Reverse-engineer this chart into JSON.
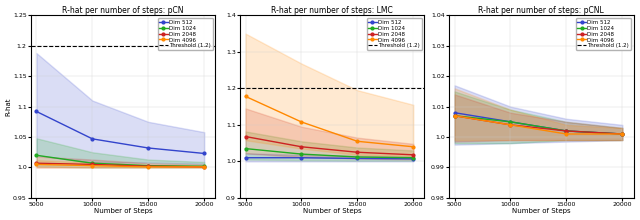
{
  "x": [
    5000,
    10000,
    15000,
    20000
  ],
  "plots": [
    {
      "title": "R-hat per number of steps: pCN",
      "ylim": [
        0.95,
        1.25
      ],
      "yticks": [
        0.95,
        1.0,
        1.05,
        1.1,
        1.15,
        1.2,
        1.25
      ],
      "series": [
        {
          "label": "Dim 512",
          "color": "#3344cc",
          "mean": [
            1.092,
            1.047,
            1.032,
            1.023
          ],
          "lo": [
            1.02,
            1.008,
            1.008,
            1.006
          ],
          "hi": [
            1.188,
            1.11,
            1.075,
            1.058
          ]
        },
        {
          "label": "Dim 1024",
          "color": "#22aa22",
          "mean": [
            1.02,
            1.007,
            1.003,
            1.002
          ],
          "lo": [
            1.002,
            1.0,
            1.0,
            1.0
          ],
          "hi": [
            1.048,
            1.025,
            1.013,
            1.009
          ]
        },
        {
          "label": "Dim 2048",
          "color": "#cc2222",
          "mean": [
            1.007,
            1.005,
            1.002,
            1.001
          ],
          "lo": [
            1.0,
            1.0,
            1.0,
            1.0
          ],
          "hi": [
            1.018,
            1.013,
            1.007,
            1.005
          ]
        },
        {
          "label": "Dim 4096",
          "color": "#ff8800",
          "mean": [
            1.005,
            1.003,
            1.001,
            1.001
          ],
          "lo": [
            1.0,
            1.0,
            1.0,
            1.0
          ],
          "hi": [
            1.012,
            1.008,
            1.004,
            1.003
          ]
        }
      ]
    },
    {
      "title": "R-hat per number of steps: LMC",
      "ylim": [
        0.9,
        1.4
      ],
      "yticks": [
        0.9,
        1.0,
        1.1,
        1.2,
        1.3,
        1.4
      ],
      "series": [
        {
          "label": "Dim 512",
          "color": "#3344cc",
          "mean": [
            1.01,
            1.01,
            1.008,
            1.007
          ],
          "lo": [
            1.0,
            1.0,
            1.0,
            1.0
          ],
          "hi": [
            1.022,
            1.018,
            1.015,
            1.013
          ]
        },
        {
          "label": "Dim 1024",
          "color": "#22aa22",
          "mean": [
            1.035,
            1.02,
            1.012,
            1.01
          ],
          "lo": [
            1.005,
            1.003,
            1.002,
            1.002
          ],
          "hi": [
            1.082,
            1.055,
            1.038,
            1.03
          ]
        },
        {
          "label": "Dim 2048",
          "color": "#cc2222",
          "mean": [
            1.068,
            1.04,
            1.025,
            1.018
          ],
          "lo": [
            1.022,
            1.012,
            1.008,
            1.005
          ],
          "hi": [
            1.145,
            1.095,
            1.065,
            1.048
          ]
        },
        {
          "label": "Dim 4096",
          "color": "#ff8800",
          "mean": [
            1.178,
            1.108,
            1.055,
            1.04
          ],
          "lo": [
            1.058,
            1.035,
            1.018,
            1.015
          ],
          "hi": [
            1.35,
            1.268,
            1.195,
            1.155
          ]
        }
      ]
    },
    {
      "title": "R-hat per number of steps: pCNL",
      "ylim": [
        0.98,
        1.04
      ],
      "yticks": [
        0.98,
        0.99,
        1.0,
        1.01,
        1.02,
        1.03,
        1.04
      ],
      "series": [
        {
          "label": "Dim 512",
          "color": "#3344cc",
          "mean": [
            1.008,
            1.005,
            1.002,
            1.001
          ],
          "lo": [
            0.9975,
            0.998,
            0.9985,
            0.999
          ],
          "hi": [
            1.017,
            1.01,
            1.006,
            1.004
          ]
        },
        {
          "label": "Dim 1024",
          "color": "#22aa22",
          "mean": [
            1.007,
            1.005,
            1.002,
            1.001
          ],
          "lo": [
            0.998,
            0.998,
            0.999,
            0.999
          ],
          "hi": [
            1.015,
            1.009,
            1.005,
            1.003
          ]
        },
        {
          "label": "Dim 2048",
          "color": "#cc2222",
          "mean": [
            1.007,
            1.004,
            1.002,
            1.001
          ],
          "lo": [
            0.9985,
            0.999,
            0.999,
            0.999
          ],
          "hi": [
            1.014,
            1.008,
            1.005,
            1.003
          ]
        },
        {
          "label": "Dim 4096",
          "color": "#ff8800",
          "mean": [
            1.007,
            1.004,
            1.001,
            1.001
          ],
          "lo": [
            0.999,
            0.999,
            0.999,
            0.999
          ],
          "hi": [
            1.016,
            1.009,
            1.004,
            1.003
          ]
        }
      ]
    }
  ],
  "threshold": 1.2,
  "xlabel": "Number of Steps",
  "ylabel": "R-hat",
  "threshold_label": "Threshold (1.2)"
}
